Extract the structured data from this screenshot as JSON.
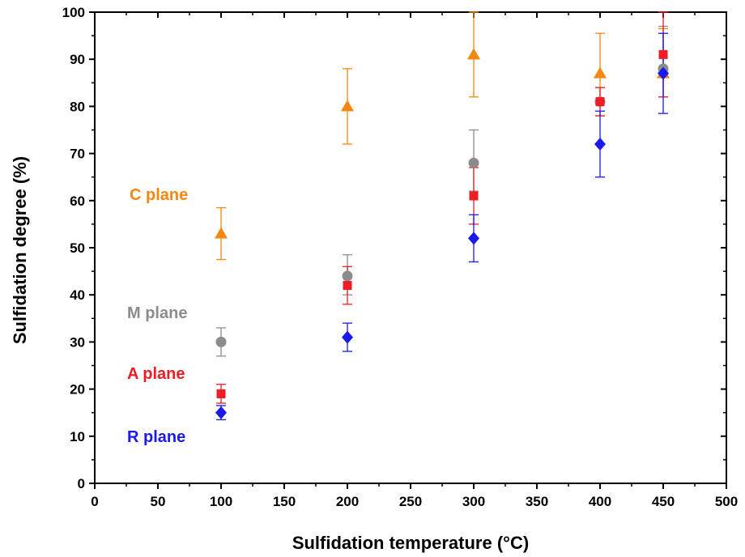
{
  "chart_data": {
    "type": "scatter",
    "xlabel": "Sulfidation temperature (°C)",
    "ylabel": "Sulfidation degree (%)",
    "xlim": [
      0,
      500
    ],
    "ylim": [
      0,
      100
    ],
    "xticks": [
      0,
      50,
      100,
      150,
      200,
      250,
      300,
      350,
      400,
      450,
      500
    ],
    "yticks": [
      0,
      10,
      20,
      30,
      40,
      50,
      60,
      70,
      80,
      90,
      100
    ],
    "grid": false,
    "legend": "inline labels",
    "series": [
      {
        "name": "C plane",
        "color": "#f5870f",
        "marker": "triangle",
        "x": [
          100,
          200,
          300,
          400,
          450
        ],
        "y": [
          53,
          80,
          91,
          87,
          87
        ],
        "err_low": [
          5.5,
          8,
          9,
          6,
          5
        ],
        "err_high": [
          5.5,
          8,
          9,
          8.5,
          9.5
        ]
      },
      {
        "name": "M plane",
        "color": "#8c8c8c",
        "marker": "circle",
        "x": [
          100,
          200,
          300,
          400,
          450
        ],
        "y": [
          30,
          44,
          68,
          81,
          88
        ],
        "err_low": [
          3,
          4,
          6,
          3,
          6
        ],
        "err_high": [
          3,
          4.5,
          7,
          3,
          9
        ]
      },
      {
        "name": "A plane",
        "color": "#ee1c25",
        "marker": "square",
        "x": [
          100,
          200,
          300,
          400,
          450
        ],
        "y": [
          19,
          42,
          61,
          81,
          91
        ],
        "err_low": [
          2,
          4,
          6,
          3,
          9
        ],
        "err_high": [
          2,
          4,
          6,
          3,
          9
        ]
      },
      {
        "name": "R plane",
        "color": "#1a1aee",
        "marker": "diamond",
        "x": [
          100,
          200,
          300,
          400,
          450
        ],
        "y": [
          15,
          31,
          52,
          72,
          87
        ],
        "err_low": [
          1.5,
          3,
          5,
          7,
          8.5
        ],
        "err_high": [
          1.5,
          3,
          5,
          7,
          8.5
        ]
      }
    ]
  }
}
